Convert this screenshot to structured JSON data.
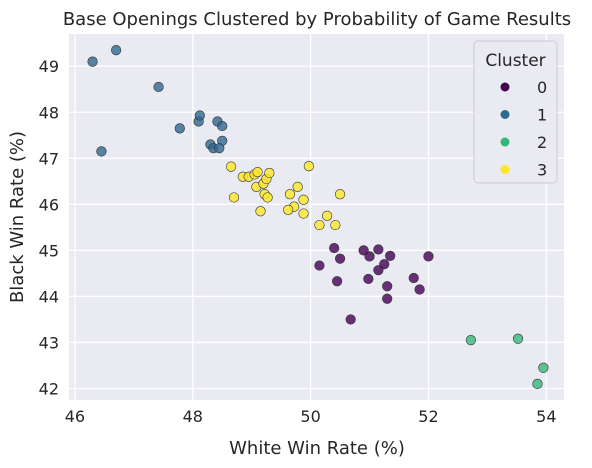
{
  "chart_data": {
    "type": "scatter",
    "title": "Base Openings Clustered by Probability of Game Results",
    "xlabel": "White Win Rate (%)",
    "ylabel": "Black Win Rate (%)",
    "xlim": [
      45.9,
      54.3
    ],
    "ylim": [
      41.75,
      49.7
    ],
    "xticks": [
      46,
      48,
      50,
      52,
      54
    ],
    "yticks": [
      42,
      43,
      44,
      45,
      46,
      47,
      48,
      49
    ],
    "grid": true,
    "legend": {
      "title": "Cluster",
      "placement": "top-right"
    },
    "series": [
      {
        "name": "0",
        "color": "#440154",
        "points": [
          [
            50.4,
            45.05
          ],
          [
            50.15,
            44.67
          ],
          [
            50.5,
            44.82
          ],
          [
            50.45,
            44.33
          ],
          [
            50.68,
            43.5
          ],
          [
            50.9,
            45.0
          ],
          [
            51.0,
            44.87
          ],
          [
            50.98,
            44.38
          ],
          [
            51.15,
            45.02
          ],
          [
            51.15,
            44.57
          ],
          [
            51.25,
            44.7
          ],
          [
            51.35,
            44.88
          ],
          [
            51.3,
            44.22
          ],
          [
            51.3,
            43.95
          ],
          [
            51.75,
            44.4
          ],
          [
            51.85,
            44.15
          ],
          [
            52.0,
            44.87
          ]
        ]
      },
      {
        "name": "1",
        "color": "#31688e",
        "points": [
          [
            46.3,
            49.1
          ],
          [
            46.7,
            49.35
          ],
          [
            46.45,
            47.15
          ],
          [
            47.42,
            48.55
          ],
          [
            47.78,
            47.65
          ],
          [
            48.1,
            47.8
          ],
          [
            48.12,
            47.93
          ],
          [
            48.42,
            47.8
          ],
          [
            48.5,
            47.7
          ],
          [
            48.5,
            47.38
          ],
          [
            48.3,
            47.3
          ],
          [
            48.35,
            47.22
          ],
          [
            48.45,
            47.22
          ]
        ]
      },
      {
        "name": "2",
        "color": "#35b779",
        "points": [
          [
            52.72,
            43.05
          ],
          [
            53.52,
            43.08
          ],
          [
            53.95,
            42.45
          ],
          [
            53.85,
            42.1
          ]
        ]
      },
      {
        "name": "3",
        "color": "#fde725",
        "points": [
          [
            48.65,
            46.82
          ],
          [
            48.7,
            46.15
          ],
          [
            48.85,
            46.6
          ],
          [
            48.95,
            46.6
          ],
          [
            49.05,
            46.65
          ],
          [
            49.1,
            46.7
          ],
          [
            49.08,
            46.38
          ],
          [
            49.2,
            46.45
          ],
          [
            49.25,
            46.55
          ],
          [
            49.3,
            46.68
          ],
          [
            49.22,
            46.22
          ],
          [
            49.27,
            46.15
          ],
          [
            49.15,
            45.85
          ],
          [
            49.65,
            46.22
          ],
          [
            49.78,
            46.38
          ],
          [
            49.72,
            45.95
          ],
          [
            49.62,
            45.88
          ],
          [
            49.88,
            46.1
          ],
          [
            49.88,
            45.8
          ],
          [
            49.97,
            46.83
          ],
          [
            50.15,
            45.55
          ],
          [
            50.28,
            45.75
          ],
          [
            50.42,
            45.55
          ],
          [
            50.5,
            46.22
          ]
        ]
      }
    ]
  }
}
